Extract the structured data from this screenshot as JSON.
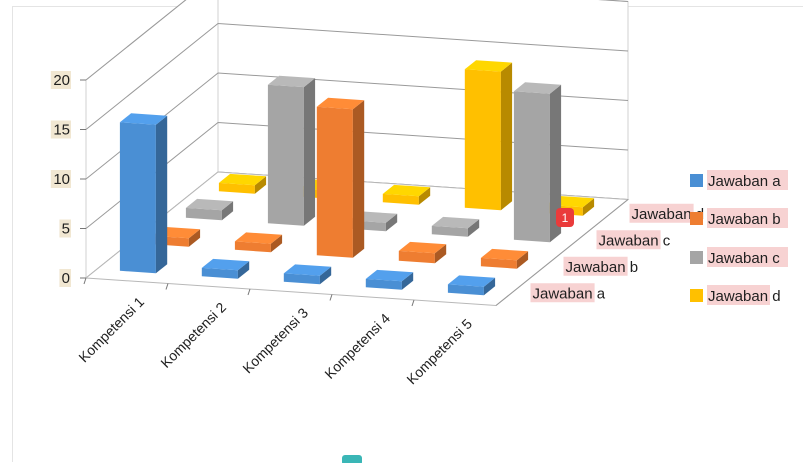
{
  "chart_data": {
    "type": "bar",
    "subtype": "3d-column",
    "categories": [
      "Kompetensi 1",
      "Kompetensi 2",
      "Kompetensi 3",
      "Kompetensi 4",
      "Kompetensi 5"
    ],
    "series": [
      {
        "name": "Jawaban a",
        "color": "#4a8fd4",
        "values": [
          15,
          0,
          0,
          0,
          0
        ]
      },
      {
        "name": "Jawaban b",
        "color": "#ee7d31",
        "values": [
          0,
          0,
          15,
          1,
          0
        ]
      },
      {
        "name": "Jawaban c",
        "color": "#a5a5a5",
        "values": [
          1,
          14,
          0,
          0,
          15
        ]
      },
      {
        "name": "Jawaban d",
        "color": "#ffc000",
        "values": [
          0,
          0,
          0,
          14,
          0
        ]
      }
    ],
    "depth_labels": [
      "Jawaban d",
      "Jawaban c",
      "Jawaban b",
      "Jawaban a"
    ],
    "yticks": [
      "0",
      "5",
      "10",
      "15",
      "20"
    ],
    "ylim": [
      0,
      20
    ],
    "grid": true,
    "legend_position": "right"
  },
  "legend": [
    {
      "prefix": "Jawaban",
      "suffix": "a"
    },
    {
      "prefix": "Jawaban",
      "suffix": "b"
    },
    {
      "prefix": "Jawaban",
      "suffix": "c"
    },
    {
      "prefix": "Jawaban",
      "suffix": "d"
    }
  ],
  "badge": {
    "text": "1",
    "color": "#ea3b3b"
  },
  "accent_color": "#3ab6b6"
}
